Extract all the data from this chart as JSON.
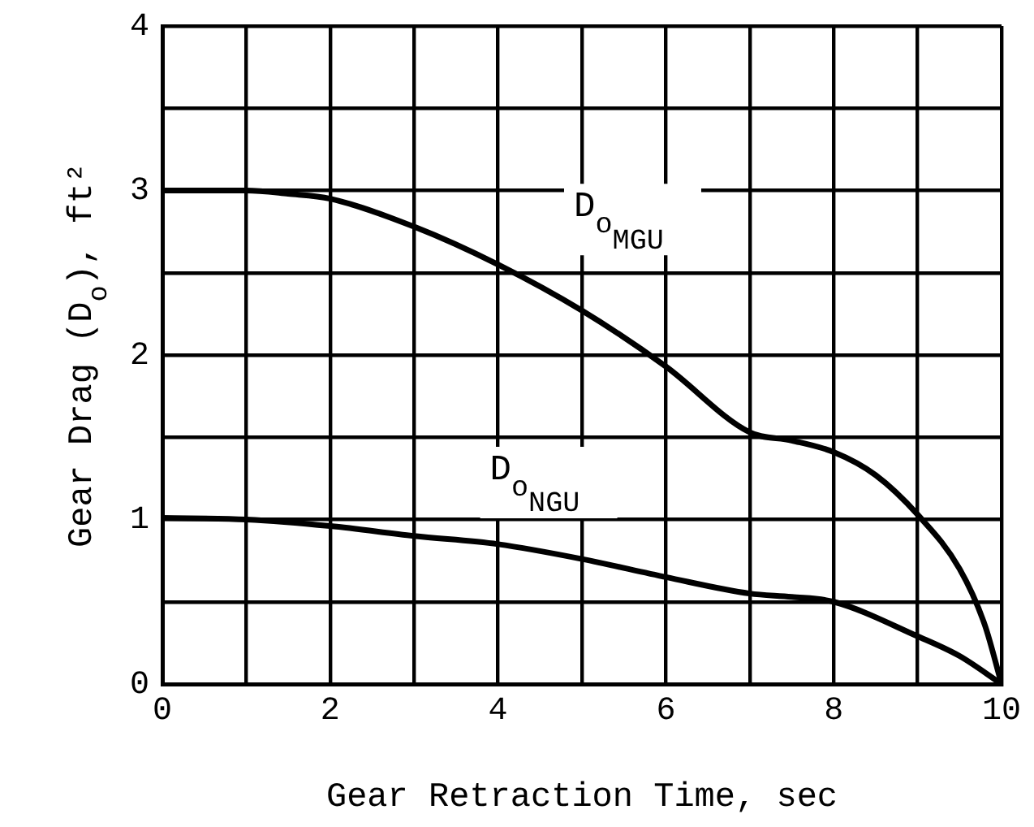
{
  "chart_data": {
    "type": "line",
    "xlabel": "Gear Retraction Time, sec",
    "ylabel": "Gear Drag (D$_{o}$), ft²",
    "xlim": [
      0,
      10
    ],
    "ylim": [
      0,
      4
    ],
    "xticks": [
      0,
      {
        "value": 1,
        "label": null
      },
      2,
      {
        "value": 3,
        "label": null
      },
      4,
      {
        "value": 5,
        "label": null
      },
      6,
      {
        "value": 7,
        "label": null
      },
      8,
      {
        "value": 9,
        "label": null
      },
      10
    ],
    "yticks": [
      0,
      {
        "value": 0.5,
        "label": null
      },
      1,
      {
        "value": 1.5,
        "label": null
      },
      2,
      {
        "value": 2.5,
        "label": null
      },
      3,
      {
        "value": 3.5,
        "label": null
      },
      4
    ],
    "grid": true,
    "legend": false,
    "marker": "none",
    "line_style": "solid",
    "series": [
      {
        "name": "D$_{o}$$_{MGU}$",
        "color": "#000000",
        "x": [
          0,
          1,
          1.5,
          2,
          3,
          4,
          5,
          6,
          7,
          7.5,
          8,
          8.5,
          9,
          9.5,
          9.8,
          10
        ],
        "values": [
          3,
          3,
          2.98,
          2.95,
          2.78,
          2.55,
          2.27,
          1.93,
          1.53,
          1.48,
          1.41,
          1.27,
          1.03,
          0.7,
          0.36,
          0
        ]
      },
      {
        "name": "D$_{o}$$_{NGU}$",
        "color": "#000000",
        "x": [
          0,
          1,
          2,
          3,
          4,
          5,
          6,
          7,
          7.5,
          8,
          9,
          9.5,
          10
        ],
        "values": [
          1.01,
          1,
          0.96,
          0.9,
          0.85,
          0.76,
          0.65,
          0.55,
          0.53,
          0.5,
          0.29,
          0.17,
          0
        ]
      }
    ]
  }
}
